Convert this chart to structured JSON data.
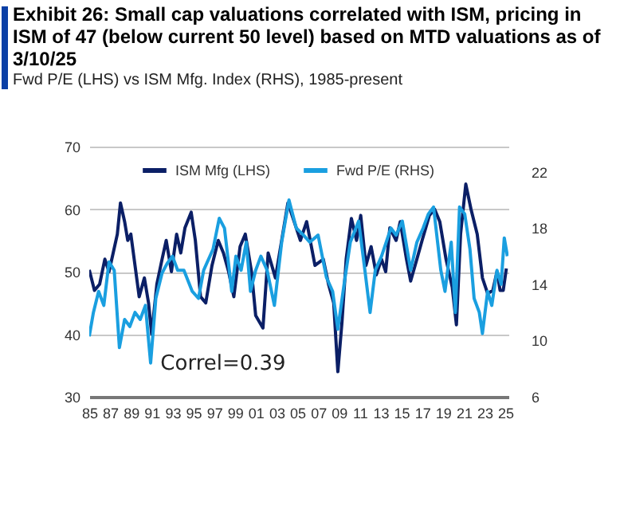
{
  "chart_data": {
    "type": "line",
    "title": "Exhibit 26: Small cap valuations correlated with ISM, pricing in ISM of 47 (below current 50 level) based on MTD valuations as of 3/10/25",
    "subtitle": "Fwd P/E (LHS) vs ISM Mfg. Index (RHS), 1985-present",
    "annotations": [
      "Correl=0.39"
    ],
    "xlim": [
      1985,
      2025.3
    ],
    "xticks": [
      {
        "value": 1985,
        "label": "85"
      },
      {
        "value": 1987,
        "label": "87"
      },
      {
        "value": 1989,
        "label": "89"
      },
      {
        "value": 1991,
        "label": "91"
      },
      {
        "value": 1993,
        "label": "93"
      },
      {
        "value": 1995,
        "label": "95"
      },
      {
        "value": 1997,
        "label": "97"
      },
      {
        "value": 1999,
        "label": "99"
      },
      {
        "value": 2001,
        "label": "01"
      },
      {
        "value": 2003,
        "label": "03"
      },
      {
        "value": 2005,
        "label": "05"
      },
      {
        "value": 2007,
        "label": "07"
      },
      {
        "value": 2009,
        "label": "09"
      },
      {
        "value": 2011,
        "label": "11"
      },
      {
        "value": 2013,
        "label": "13"
      },
      {
        "value": 2015,
        "label": "15"
      },
      {
        "value": 2017,
        "label": "17"
      },
      {
        "value": 2019,
        "label": "19"
      },
      {
        "value": 2021,
        "label": "21"
      },
      {
        "value": 2023,
        "label": "23"
      },
      {
        "value": 2025,
        "label": "25"
      }
    ],
    "ylim": [
      30,
      70
    ],
    "yticks": [
      30,
      40,
      50,
      60,
      70
    ],
    "y2lim": [
      6,
      23.8
    ],
    "y2ticks": [
      6,
      10,
      14,
      18,
      22
    ],
    "grid": "y",
    "legend": "top",
    "series": [
      {
        "name": "ISM Mfg (LHS)",
        "color": "#0b1f66",
        "x": [
          1985.0,
          1985.5,
          1986.0,
          1986.5,
          1986.9,
          1987.3,
          1987.7,
          1988.0,
          1988.4,
          1988.7,
          1989.0,
          1989.4,
          1989.8,
          1990.3,
          1990.7,
          1991.0,
          1991.5,
          1992.0,
          1992.4,
          1992.9,
          1993.4,
          1993.8,
          1994.2,
          1994.8,
          1995.2,
          1995.7,
          1996.2,
          1996.8,
          1997.4,
          1997.9,
          1998.4,
          1998.9,
          1999.5,
          2000.0,
          2000.6,
          2001.0,
          2001.7,
          2002.2,
          2002.9,
          2003.5,
          2004.1,
          2004.7,
          2005.3,
          2005.9,
          2006.7,
          2007.5,
          2008.0,
          2008.5,
          2008.9,
          2009.3,
          2009.7,
          2010.2,
          2010.7,
          2011.1,
          2011.6,
          2012.1,
          2012.6,
          2013.1,
          2013.5,
          2013.9,
          2014.5,
          2014.9,
          2015.5,
          2015.9,
          2016.5,
          2017.0,
          2017.7,
          2018.2,
          2018.7,
          2019.3,
          2019.9,
          2020.3,
          2020.7,
          2021.2,
          2021.7,
          2022.3,
          2022.8,
          2023.3,
          2023.8,
          2024.2,
          2024.5,
          2024.8,
          2025.1
        ],
        "values": [
          50.3,
          47,
          48,
          52,
          50,
          53,
          56,
          61,
          58,
          55,
          56,
          51,
          46,
          49,
          45,
          40,
          48,
          52,
          55,
          50,
          56,
          53,
          57,
          59.5,
          55,
          46,
          45,
          51,
          55,
          53,
          50,
          46,
          54,
          56,
          50,
          43,
          41,
          53,
          49,
          55,
          61,
          58,
          55,
          58,
          51,
          52,
          48,
          45,
          34,
          42,
          52,
          58.5,
          55,
          59,
          51,
          54,
          49.5,
          52,
          50,
          57,
          55,
          58,
          52,
          48.5,
          52,
          55,
          59,
          60,
          58,
          52,
          47.5,
          41.5,
          56,
          64,
          60,
          56,
          49,
          46.5,
          47,
          50,
          47,
          47,
          50.5
        ]
      },
      {
        "name": "Fwd P/E (RHS)",
        "color": "#1a9fe0",
        "axis": "y2",
        "x": [
          1985.0,
          1985.4,
          1985.9,
          1986.4,
          1986.9,
          1987.4,
          1987.9,
          1988.4,
          1988.9,
          1989.4,
          1989.9,
          1990.4,
          1990.9,
          1991.4,
          1992.0,
          1992.5,
          1993.0,
          1993.5,
          1994.1,
          1994.9,
          1995.5,
          1996.0,
          1996.9,
          1997.5,
          1998.0,
          1998.7,
          1999.1,
          1999.6,
          2000.1,
          2000.5,
          2001.0,
          2001.5,
          2002.1,
          2002.8,
          2003.5,
          2004.2,
          2004.9,
          2005.6,
          2006.2,
          2007.0,
          2007.8,
          2008.4,
          2008.9,
          2009.5,
          2010.1,
          2010.9,
          2011.5,
          2012.0,
          2012.5,
          2013.1,
          2014.0,
          2014.5,
          2015.1,
          2015.9,
          2016.5,
          2017.1,
          2017.6,
          2018.1,
          2018.8,
          2019.2,
          2019.8,
          2020.2,
          2020.6,
          2021.1,
          2021.6,
          2022.0,
          2022.5,
          2022.8,
          2023.3,
          2023.7,
          2024.2,
          2024.6,
          2024.9,
          2025.2
        ],
        "values": [
          10.3,
          12,
          13.5,
          12.5,
          15.6,
          15,
          9.5,
          11.5,
          11,
          12,
          11.5,
          12.5,
          8.4,
          13,
          14.8,
          15.5,
          16,
          15,
          15,
          13.5,
          13,
          15,
          16.5,
          18.7,
          18,
          13.5,
          16,
          15,
          17,
          13.5,
          15,
          16,
          15,
          12.5,
          17,
          20,
          18,
          17.5,
          17,
          17.5,
          14.5,
          13.5,
          10.8,
          14,
          17,
          18.5,
          15,
          12,
          15,
          16,
          18,
          17.5,
          18.5,
          15,
          17,
          18,
          19,
          19.5,
          15,
          13.5,
          17,
          12,
          19.5,
          19,
          16.5,
          13,
          12,
          10.5,
          13.5,
          12.5,
          15,
          14,
          17.3,
          16
        ]
      }
    ]
  }
}
